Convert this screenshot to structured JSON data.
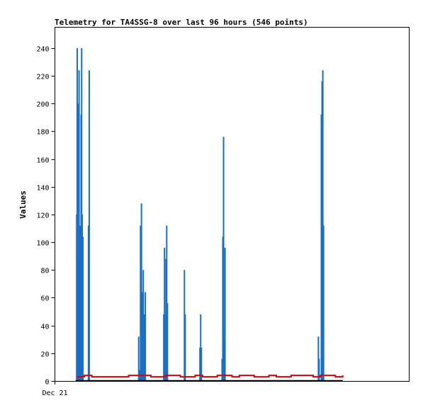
{
  "chart_data": {
    "type": "line",
    "title": "Telemetry for TA4SSG-8 over last 96 hours (546 points)",
    "xlabel": "",
    "ylabel": "Values",
    "x_tick_labels": [
      "Dec 21"
    ],
    "y_ticks": [
      0,
      20,
      40,
      60,
      80,
      100,
      120,
      140,
      160,
      180,
      200,
      220,
      240
    ],
    "ylim": [
      0,
      255
    ],
    "xlim": [
      0,
      96
    ],
    "grid": false,
    "legend": "none",
    "colors": {
      "series_a": "#1a6fc4",
      "series_b": "#e00000",
      "baseline": "#000000"
    },
    "series": [
      {
        "style": "spikes",
        "x": [
          5.9,
          6.05,
          6.2,
          6.35,
          6.55,
          6.75,
          6.9,
          7.1,
          7.25,
          7.4,
          7.6,
          9.1,
          9.3,
          22.7,
          23.0,
          23.2,
          23.45,
          23.7,
          23.95,
          24.2,
          24.5,
          29.5,
          29.7,
          29.9,
          30.1,
          30.3,
          30.5,
          35.1,
          35.3,
          39.3,
          39.5,
          39.7,
          45.3,
          45.5,
          45.7,
          45.9,
          46.1,
          71.4,
          71.6,
          72.2,
          72.4,
          72.6,
          72.8
        ],
        "y": [
          120,
          240,
          200,
          88,
          224,
          112,
          96,
          192,
          240,
          120,
          104,
          112,
          224,
          32,
          8,
          112,
          128,
          64,
          80,
          48,
          64,
          48,
          96,
          48,
          88,
          112,
          56,
          80,
          48,
          24,
          48,
          24,
          16,
          104,
          176,
          32,
          96,
          32,
          16,
          192,
          216,
          224,
          112
        ]
      },
      {
        "style": "step",
        "x": [
          6.0,
          8.0,
          10.0,
          12.0,
          14.0,
          16.0,
          18.0,
          20.0,
          22.0,
          24.0,
          26.0,
          28.0,
          30.0,
          32.0,
          34.0,
          36.0,
          38.0,
          40.0,
          42.0,
          44.0,
          46.0,
          48.0,
          50.0,
          52.0,
          54.0,
          56.0,
          58.0,
          60.0,
          62.0,
          64.0,
          66.0,
          68.0,
          70.0,
          72.0,
          74.0,
          76.0,
          78.0
        ],
        "y": [
          3,
          4,
          3,
          3,
          3,
          3,
          3,
          4,
          4,
          4,
          3,
          3,
          4,
          4,
          3,
          3,
          4,
          3,
          3,
          4,
          4,
          3,
          4,
          4,
          3,
          3,
          4,
          3,
          3,
          4,
          4,
          4,
          3,
          4,
          4,
          3,
          4
        ]
      },
      {
        "style": "baseline",
        "x": [
          5.6,
          78.0
        ],
        "y": [
          0,
          0
        ]
      }
    ]
  }
}
